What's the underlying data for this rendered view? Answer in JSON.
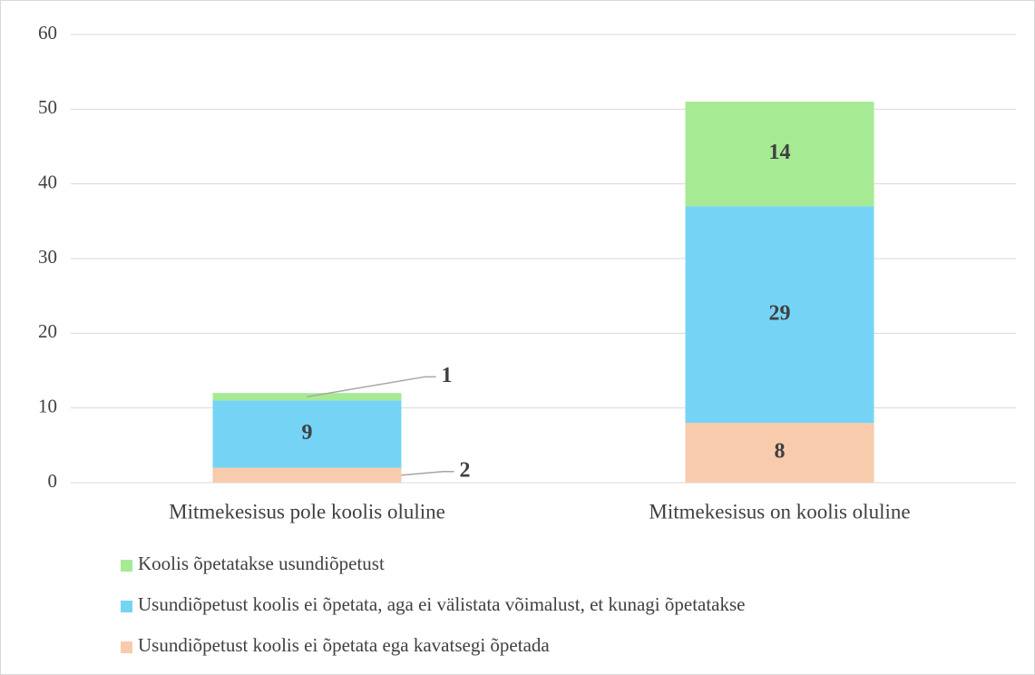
{
  "chart_data": {
    "type": "stacked_bar",
    "categories": [
      "Mitmekesisus pole koolis oluline",
      "Mitmekesisus on koolis oluline"
    ],
    "series": [
      {
        "name": "Koolis õpetatakse usundiõpetust",
        "color": "#a6ea94",
        "values": [
          1,
          14
        ]
      },
      {
        "name": "Usundiõpetust koolis ei õpetata, aga ei välistata võimalust, et kunagi õpetatakse",
        "color": "#75d4f5",
        "values": [
          9,
          29
        ]
      },
      {
        "name": "Usundiõpetust koolis ei õpetata ega kavatsegi õpetada",
        "color": "#f8cbad",
        "values": [
          2,
          8
        ]
      }
    ],
    "ylim": [
      0,
      60
    ],
    "yticks": [
      0,
      10,
      20,
      30,
      40,
      50,
      60
    ],
    "grid": true,
    "legend": "bottom"
  }
}
